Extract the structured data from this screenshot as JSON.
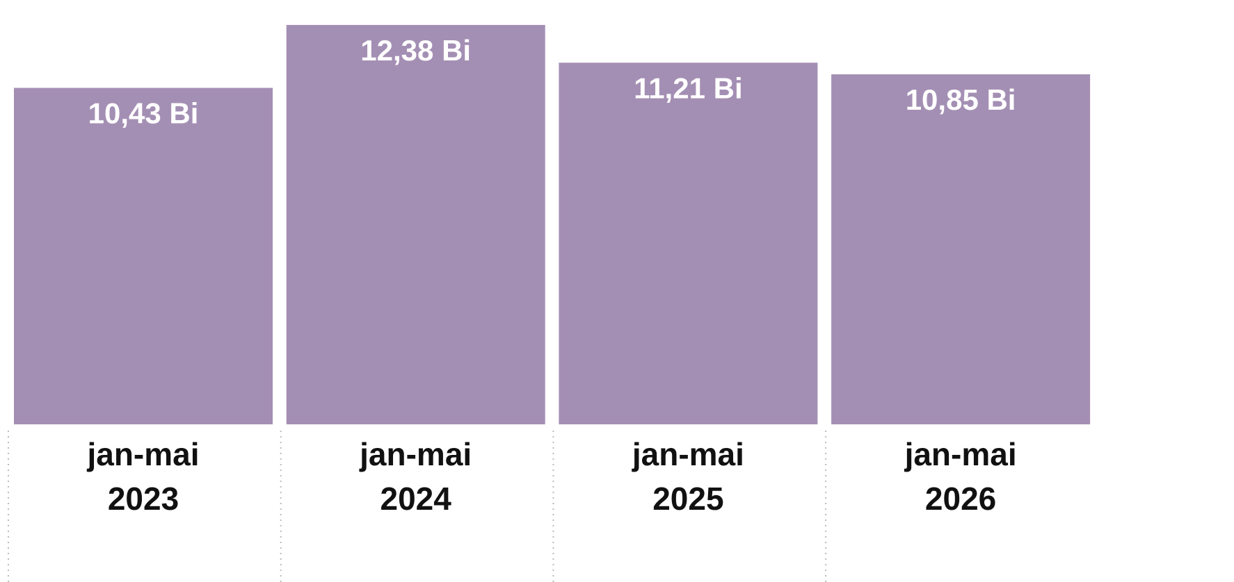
{
  "chart_data": {
    "type": "bar",
    "categories": [
      "jan-mai 2023",
      "jan-mai 2024",
      "jan-mai 2025",
      "jan-mai 2026"
    ],
    "values": [
      10.43,
      12.38,
      11.21,
      10.85
    ],
    "value_labels": [
      "10,43 Bi",
      "12,38 Bi",
      "11,21 Bi",
      "10,85 Bi"
    ],
    "color": "#a48fb4",
    "ylim": [
      0,
      12.4
    ]
  }
}
